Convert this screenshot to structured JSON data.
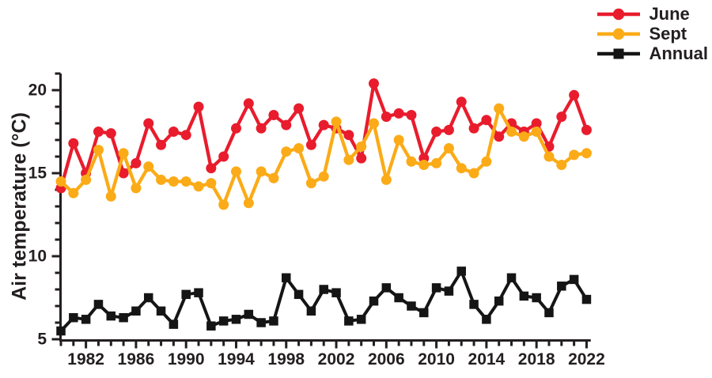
{
  "legend": {
    "items": [
      {
        "label": "June",
        "color": "#e81c2d",
        "marker": "circle"
      },
      {
        "label": "Sept",
        "color": "#fbab17",
        "marker": "circle"
      },
      {
        "label": "Annual",
        "color": "#151515",
        "marker": "square"
      }
    ]
  },
  "chart_data": {
    "type": "line",
    "title": "",
    "xlabel": "",
    "ylabel": "Air temperature (°C)",
    "x": [
      1980,
      1981,
      1982,
      1983,
      1984,
      1985,
      1986,
      1987,
      1988,
      1989,
      1990,
      1991,
      1992,
      1993,
      1994,
      1995,
      1996,
      1997,
      1998,
      1999,
      2000,
      2001,
      2002,
      2003,
      2004,
      2005,
      2006,
      2007,
      2008,
      2009,
      2010,
      2011,
      2012,
      2013,
      2014,
      2015,
      2016,
      2017,
      2018,
      2019,
      2020,
      2021,
      2022
    ],
    "series": [
      {
        "name": "June",
        "color": "#e81c2d",
        "marker": "circle",
        "values": [
          14.1,
          16.8,
          15.0,
          17.5,
          17.4,
          15.0,
          15.6,
          18.0,
          16.7,
          17.5,
          17.3,
          19.0,
          15.3,
          16.0,
          17.7,
          19.2,
          17.7,
          18.5,
          17.9,
          18.9,
          16.7,
          17.9,
          17.7,
          17.3,
          15.9,
          20.4,
          18.4,
          18.6,
          18.5,
          15.9,
          17.5,
          17.6,
          19.3,
          17.7,
          18.2,
          17.2,
          18.0,
          17.5,
          18.0,
          16.6,
          18.4,
          19.7,
          17.6
        ]
      },
      {
        "name": "Sept",
        "color": "#fbab17",
        "marker": "circle",
        "values": [
          14.5,
          13.8,
          14.6,
          16.4,
          13.6,
          16.2,
          14.1,
          15.4,
          14.6,
          14.5,
          14.5,
          14.2,
          14.4,
          13.1,
          15.1,
          13.2,
          15.1,
          14.7,
          16.3,
          16.5,
          14.4,
          14.8,
          18.1,
          15.8,
          16.6,
          18.0,
          14.6,
          17.0,
          15.7,
          15.5,
          15.6,
          16.5,
          15.3,
          15.0,
          15.7,
          18.9,
          17.5,
          17.2,
          17.5,
          16.0,
          15.5,
          16.1,
          16.2
        ]
      },
      {
        "name": "Annual",
        "color": "#151515",
        "marker": "square",
        "values": [
          5.5,
          6.3,
          6.2,
          7.1,
          6.4,
          6.3,
          6.7,
          7.5,
          6.7,
          5.9,
          7.7,
          7.8,
          5.8,
          6.1,
          6.2,
          6.5,
          6.0,
          6.1,
          8.7,
          7.7,
          6.7,
          8.0,
          7.8,
          6.1,
          6.2,
          7.3,
          8.1,
          7.5,
          7.0,
          6.6,
          8.1,
          7.9,
          9.1,
          7.1,
          6.2,
          7.3,
          8.7,
          7.6,
          7.5,
          6.6,
          8.2,
          8.6,
          7.4
        ]
      }
    ],
    "xlim": [
      1980,
      2023
    ],
    "ylim": [
      5,
      21
    ],
    "yticks": [
      5,
      10,
      15,
      20
    ],
    "ytick_minor_step": 1,
    "xticks": [
      1982,
      1986,
      1990,
      1994,
      1998,
      2002,
      2006,
      2010,
      2014,
      2018,
      2022
    ],
    "xtick_minor_step": 1,
    "grid": false,
    "legend_position": "top-right"
  }
}
